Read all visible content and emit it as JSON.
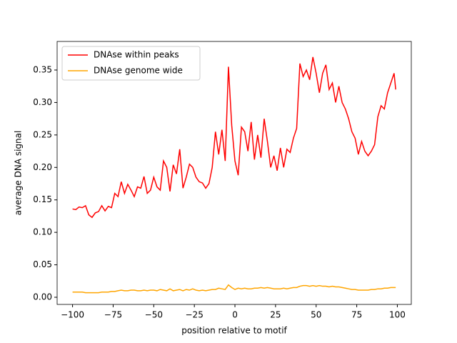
{
  "chart_data": {
    "type": "line",
    "xlabel": "position relative to motif",
    "ylabel": "average DNA signal",
    "x": [
      -100,
      -98,
      -96,
      -94,
      -92,
      -90,
      -88,
      -86,
      -84,
      -82,
      -80,
      -78,
      -76,
      -74,
      -72,
      -70,
      -68,
      -66,
      -64,
      -62,
      -60,
      -58,
      -56,
      -54,
      -52,
      -50,
      -48,
      -46,
      -44,
      -42,
      -40,
      -38,
      -36,
      -34,
      -32,
      -30,
      -28,
      -26,
      -24,
      -22,
      -20,
      -18,
      -16,
      -14,
      -12,
      -10,
      -8,
      -6,
      -4,
      -2,
      0,
      2,
      4,
      6,
      8,
      10,
      12,
      14,
      16,
      18,
      20,
      22,
      24,
      26,
      28,
      30,
      32,
      34,
      36,
      38,
      40,
      42,
      44,
      46,
      48,
      50,
      52,
      54,
      56,
      58,
      60,
      62,
      64,
      66,
      68,
      70,
      72,
      74,
      76,
      78,
      80,
      82,
      84,
      86,
      88,
      90,
      92,
      94,
      96,
      98,
      99
    ],
    "series": [
      {
        "name": "DNAse within peaks",
        "color": "#ff0000",
        "values": [
          0.136,
          0.135,
          0.139,
          0.138,
          0.141,
          0.127,
          0.123,
          0.13,
          0.132,
          0.141,
          0.133,
          0.14,
          0.138,
          0.16,
          0.155,
          0.178,
          0.16,
          0.174,
          0.165,
          0.155,
          0.17,
          0.168,
          0.186,
          0.16,
          0.165,
          0.185,
          0.17,
          0.165,
          0.21,
          0.2,
          0.163,
          0.204,
          0.19,
          0.228,
          0.168,
          0.185,
          0.205,
          0.2,
          0.185,
          0.178,
          0.176,
          0.168,
          0.175,
          0.2,
          0.255,
          0.22,
          0.258,
          0.21,
          0.355,
          0.265,
          0.21,
          0.188,
          0.262,
          0.255,
          0.225,
          0.27,
          0.212,
          0.25,
          0.215,
          0.275,
          0.24,
          0.2,
          0.218,
          0.195,
          0.23,
          0.2,
          0.228,
          0.223,
          0.245,
          0.26,
          0.36,
          0.34,
          0.35,
          0.335,
          0.37,
          0.345,
          0.315,
          0.345,
          0.358,
          0.32,
          0.33,
          0.3,
          0.325,
          0.3,
          0.29,
          0.275,
          0.255,
          0.245,
          0.22,
          0.24,
          0.225,
          0.218,
          0.225,
          0.235,
          0.278,
          0.295,
          0.29,
          0.315,
          0.33,
          0.345,
          0.32
        ]
      },
      {
        "name": "DNAse genome wide",
        "color": "#ffa500",
        "values": [
          0.008,
          0.008,
          0.008,
          0.008,
          0.007,
          0.007,
          0.007,
          0.007,
          0.007,
          0.008,
          0.008,
          0.008,
          0.009,
          0.009,
          0.01,
          0.011,
          0.01,
          0.01,
          0.011,
          0.011,
          0.01,
          0.01,
          0.011,
          0.01,
          0.011,
          0.011,
          0.01,
          0.012,
          0.011,
          0.01,
          0.013,
          0.01,
          0.011,
          0.012,
          0.01,
          0.012,
          0.011,
          0.013,
          0.011,
          0.01,
          0.011,
          0.01,
          0.011,
          0.012,
          0.012,
          0.014,
          0.013,
          0.012,
          0.019,
          0.015,
          0.012,
          0.014,
          0.013,
          0.014,
          0.013,
          0.013,
          0.014,
          0.014,
          0.015,
          0.014,
          0.015,
          0.014,
          0.013,
          0.013,
          0.013,
          0.014,
          0.013,
          0.014,
          0.015,
          0.015,
          0.017,
          0.018,
          0.018,
          0.017,
          0.018,
          0.017,
          0.018,
          0.017,
          0.017,
          0.016,
          0.017,
          0.016,
          0.016,
          0.015,
          0.014,
          0.013,
          0.012,
          0.012,
          0.011,
          0.011,
          0.011,
          0.011,
          0.012,
          0.012,
          0.013,
          0.013,
          0.014,
          0.014,
          0.015,
          0.015,
          0.015
        ]
      }
    ],
    "xlim": [
      -109.5,
      108.6
    ],
    "ylim": [
      -0.011,
      0.394
    ],
    "xticks": [
      {
        "value": -100,
        "label": "−100"
      },
      {
        "value": -75,
        "label": "−75"
      },
      {
        "value": -50,
        "label": "−50"
      },
      {
        "value": -25,
        "label": "−25"
      },
      0,
      25,
      50,
      75,
      100
    ],
    "yticks": [
      {
        "value": 0,
        "label": "0.00"
      },
      0.05,
      {
        "value": 0.1,
        "label": "0.10"
      },
      0.15,
      {
        "value": 0.2,
        "label": "0.20"
      },
      0.25,
      {
        "value": 0.3,
        "label": "0.30"
      },
      0.35
    ],
    "legend": "upper left"
  }
}
